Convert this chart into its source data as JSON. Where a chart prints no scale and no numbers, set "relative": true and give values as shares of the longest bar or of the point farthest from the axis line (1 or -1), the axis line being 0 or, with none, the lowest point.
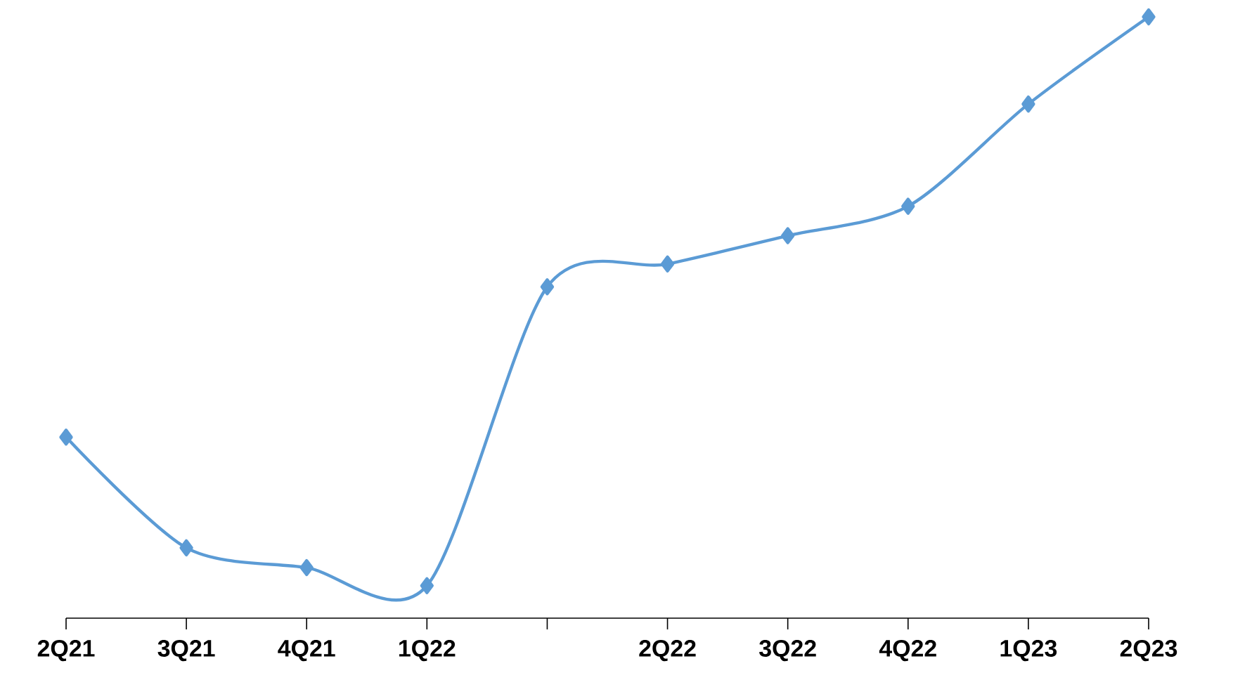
{
  "chart_data": {
    "type": "line",
    "relative": true,
    "categories": [
      "2Q21",
      "3Q21",
      "4Q21",
      "1Q22",
      null,
      "2Q22",
      "3Q22",
      "4Q22",
      "1Q23",
      "2Q23"
    ],
    "series": [
      {
        "color": "#5b9bd5",
        "values": [
          0.301,
          0.117,
          0.084,
          0.054,
          0.551,
          0.589,
          0.636,
          0.685,
          0.855,
          1
        ]
      }
    ],
    "marker": "diamond",
    "line_style": "solid"
  }
}
